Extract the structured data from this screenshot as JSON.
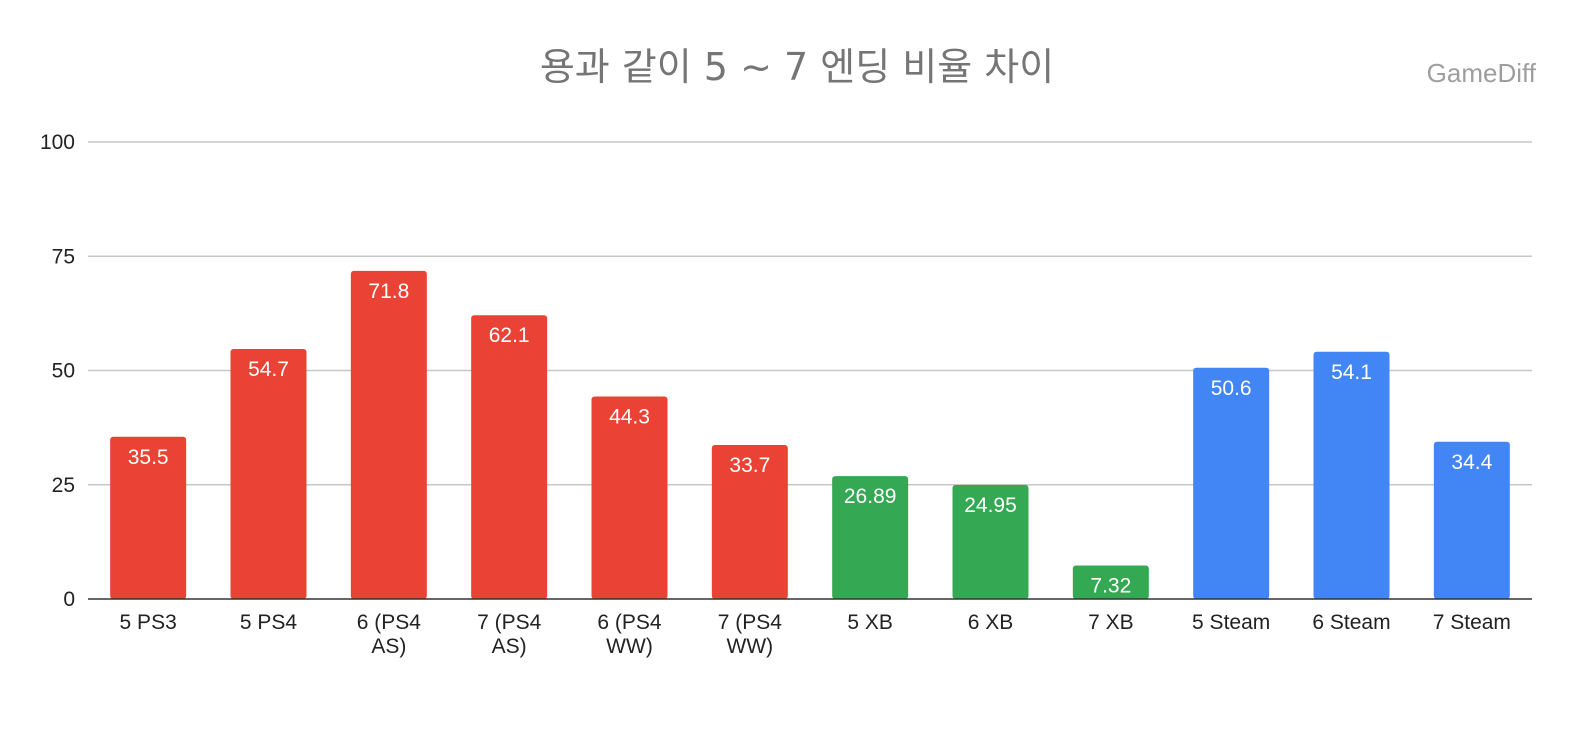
{
  "title": "용과 같이 5 ~ 7 엔딩 비율 차이",
  "watermark": "GameDiff",
  "chart_data": {
    "type": "bar",
    "title": "용과 같이 5 ~ 7 엔딩 비율 차이",
    "xlabel": "",
    "ylabel": "",
    "ylim": [
      0,
      100
    ],
    "yticks": [
      0,
      25,
      50,
      75,
      100
    ],
    "grid": true,
    "legend": "none",
    "categories": [
      "5 PS3",
      "5 PS4",
      "6 (PS4 AS)",
      "7 (PS4 AS)",
      "6 (PS4 WW)",
      "7 (PS4 WW)",
      "5 XB",
      "6 XB",
      "7 XB",
      "5 Steam",
      "6 Steam",
      "7 Steam"
    ],
    "category_lines": [
      [
        "5 PS3"
      ],
      [
        "5 PS4"
      ],
      [
        "6 (PS4",
        "AS)"
      ],
      [
        "7 (PS4",
        "AS)"
      ],
      [
        "6 (PS4",
        "WW)"
      ],
      [
        "7 (PS4",
        "WW)"
      ],
      [
        "5 XB"
      ],
      [
        "6 XB"
      ],
      [
        "7 XB"
      ],
      [
        "5 Steam"
      ],
      [
        "6 Steam"
      ],
      [
        "7 Steam"
      ]
    ],
    "values": [
      35.5,
      54.7,
      71.8,
      62.1,
      44.3,
      33.7,
      26.89,
      24.95,
      7.32,
      50.6,
      54.1,
      34.4
    ],
    "labels": [
      "35.5",
      "54.7",
      "71.8",
      "62.1",
      "44.3",
      "33.7",
      "26.89",
      "24.95",
      "7.32",
      "50.6",
      "54.1",
      "34.4"
    ],
    "colors": [
      "#ea4335",
      "#ea4335",
      "#ea4335",
      "#ea4335",
      "#ea4335",
      "#ea4335",
      "#34a853",
      "#34a853",
      "#34a853",
      "#4285f4",
      "#4285f4",
      "#4285f4"
    ],
    "gridline_color": "#c7c7c7",
    "axis_color": "#333333"
  }
}
